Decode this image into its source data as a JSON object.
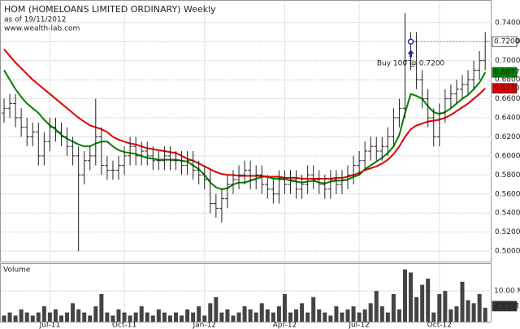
{
  "chart_data": {
    "type": "ohlc",
    "title": "HOM (HOMELOANS LIMITED ORDINARY) Weekly",
    "subtitle": "as of 19/11/2012",
    "source": "www.wealth-lab.com",
    "categories": [
      null,
      null,
      null,
      null,
      null,
      null,
      null,
      null,
      "Jul-11",
      null,
      null,
      null,
      null,
      null,
      null,
      null,
      null,
      null,
      null,
      null,
      null,
      "Oct-11",
      null,
      null,
      null,
      null,
      null,
      null,
      null,
      null,
      null,
      null,
      null,
      null,
      null,
      "Jan-12",
      null,
      null,
      null,
      null,
      null,
      null,
      null,
      null,
      null,
      null,
      null,
      null,
      null,
      "Apr-12",
      null,
      null,
      null,
      null,
      null,
      null,
      null,
      null,
      null,
      null,
      null,
      null,
      "Jul-12",
      null,
      null,
      null,
      null,
      null,
      null,
      null,
      null,
      null,
      null,
      null,
      null,
      null,
      "Oct-12",
      null,
      null,
      null,
      null,
      null,
      null,
      null,
      null
    ],
    "ohlc": {
      "color": "#222222",
      "open": [
        0.645,
        0.65,
        0.655,
        0.64,
        0.63,
        0.62,
        0.625,
        0.6,
        0.615,
        0.63,
        0.625,
        0.62,
        0.61,
        0.6,
        0.58,
        0.595,
        0.6,
        0.62,
        0.59,
        0.585,
        0.585,
        0.59,
        0.6,
        0.61,
        0.6,
        0.605,
        0.6,
        0.595,
        0.595,
        0.6,
        0.595,
        0.595,
        0.59,
        0.595,
        0.585,
        0.58,
        0.575,
        0.55,
        0.545,
        0.555,
        0.57,
        0.575,
        0.58,
        0.585,
        0.575,
        0.58,
        0.57,
        0.565,
        0.56,
        0.575,
        0.57,
        0.575,
        0.565,
        0.57,
        0.58,
        0.575,
        0.57,
        0.565,
        0.575,
        0.57,
        0.575,
        0.58,
        0.59,
        0.595,
        0.605,
        0.61,
        0.605,
        0.61,
        0.62,
        0.64,
        0.65,
        0.7,
        0.72,
        0.68,
        0.66,
        0.64,
        0.62,
        0.645,
        0.66,
        0.665,
        0.67,
        0.675,
        0.68,
        0.69,
        0.7
      ],
      "high": [
        0.66,
        0.665,
        0.665,
        0.65,
        0.64,
        0.635,
        0.635,
        0.625,
        0.64,
        0.64,
        0.635,
        0.63,
        0.62,
        0.61,
        0.605,
        0.61,
        0.66,
        0.63,
        0.6,
        0.595,
        0.6,
        0.61,
        0.62,
        0.62,
        0.615,
        0.615,
        0.61,
        0.605,
        0.61,
        0.61,
        0.605,
        0.605,
        0.605,
        0.605,
        0.595,
        0.59,
        0.585,
        0.56,
        0.565,
        0.58,
        0.585,
        0.59,
        0.595,
        0.595,
        0.59,
        0.59,
        0.58,
        0.575,
        0.585,
        0.585,
        0.585,
        0.585,
        0.58,
        0.59,
        0.59,
        0.585,
        0.58,
        0.585,
        0.585,
        0.585,
        0.59,
        0.6,
        0.605,
        0.615,
        0.62,
        0.62,
        0.62,
        0.63,
        0.65,
        0.66,
        0.75,
        0.73,
        0.73,
        0.69,
        0.67,
        0.65,
        0.655,
        0.67,
        0.675,
        0.68,
        0.685,
        0.69,
        0.7,
        0.71,
        0.73
      ],
      "low": [
        0.635,
        0.64,
        0.63,
        0.62,
        0.61,
        0.61,
        0.59,
        0.59,
        0.605,
        0.615,
        0.61,
        0.6,
        0.59,
        0.5,
        0.57,
        0.585,
        0.59,
        0.58,
        0.575,
        0.575,
        0.575,
        0.58,
        0.59,
        0.59,
        0.59,
        0.59,
        0.585,
        0.585,
        0.585,
        0.585,
        0.585,
        0.58,
        0.58,
        0.575,
        0.57,
        0.565,
        0.54,
        0.535,
        0.53,
        0.545,
        0.56,
        0.565,
        0.57,
        0.565,
        0.565,
        0.56,
        0.555,
        0.55,
        0.55,
        0.56,
        0.56,
        0.555,
        0.555,
        0.56,
        0.565,
        0.56,
        0.555,
        0.555,
        0.56,
        0.56,
        0.565,
        0.57,
        0.58,
        0.585,
        0.595,
        0.595,
        0.595,
        0.6,
        0.61,
        0.63,
        0.64,
        0.69,
        0.67,
        0.65,
        0.63,
        0.61,
        0.61,
        0.635,
        0.65,
        0.655,
        0.66,
        0.665,
        0.67,
        0.68,
        0.69
      ],
      "close": [
        0.65,
        0.655,
        0.64,
        0.63,
        0.62,
        0.625,
        0.6,
        0.615,
        0.63,
        0.625,
        0.62,
        0.61,
        0.6,
        0.58,
        0.595,
        0.6,
        0.62,
        0.59,
        0.585,
        0.585,
        0.59,
        0.6,
        0.61,
        0.6,
        0.605,
        0.6,
        0.595,
        0.595,
        0.6,
        0.595,
        0.595,
        0.59,
        0.595,
        0.585,
        0.58,
        0.575,
        0.55,
        0.545,
        0.555,
        0.57,
        0.575,
        0.58,
        0.585,
        0.575,
        0.58,
        0.57,
        0.565,
        0.56,
        0.575,
        0.57,
        0.575,
        0.565,
        0.57,
        0.58,
        0.575,
        0.57,
        0.565,
        0.575,
        0.57,
        0.575,
        0.58,
        0.59,
        0.595,
        0.605,
        0.61,
        0.605,
        0.61,
        0.62,
        0.64,
        0.65,
        0.7,
        0.72,
        0.68,
        0.66,
        0.64,
        0.62,
        0.645,
        0.66,
        0.665,
        0.67,
        0.675,
        0.68,
        0.69,
        0.7,
        0.72
      ],
      "last_label": "0.7200"
    },
    "series": [
      {
        "color": "#008000",
        "last_label": "0.6877",
        "values": [
          0.69,
          0.68,
          0.67,
          0.662,
          0.655,
          0.65,
          0.645,
          0.638,
          0.632,
          0.628,
          0.622,
          0.618,
          0.615,
          0.612,
          0.61,
          0.61,
          0.613,
          0.615,
          0.615,
          0.61,
          0.606,
          0.604,
          0.603,
          0.602,
          0.6,
          0.598,
          0.597,
          0.596,
          0.596,
          0.596,
          0.596,
          0.595,
          0.594,
          0.59,
          0.586,
          0.58,
          0.572,
          0.567,
          0.565,
          0.566,
          0.57,
          0.572,
          0.572,
          0.574,
          0.576,
          0.578,
          0.578,
          0.576,
          0.576,
          0.576,
          0.574,
          0.573,
          0.572,
          0.573,
          0.574,
          0.572,
          0.571,
          0.573,
          0.574,
          0.574,
          0.575,
          0.578,
          0.58,
          0.586,
          0.59,
          0.594,
          0.598,
          0.603,
          0.61,
          0.622,
          0.645,
          0.665,
          0.663,
          0.66,
          0.652,
          0.646,
          0.644,
          0.646,
          0.65,
          0.655,
          0.66,
          0.664,
          0.67,
          0.677,
          0.6877
        ]
      },
      {
        "color": "#e00000",
        "last_label": "0.6710",
        "values": [
          0.712,
          0.705,
          0.698,
          0.692,
          0.686,
          0.68,
          0.675,
          0.67,
          0.665,
          0.66,
          0.655,
          0.65,
          0.645,
          0.64,
          0.636,
          0.632,
          0.63,
          0.628,
          0.625,
          0.62,
          0.617,
          0.615,
          0.613,
          0.612,
          0.61,
          0.608,
          0.607,
          0.606,
          0.605,
          0.604,
          0.603,
          0.6,
          0.597,
          0.595,
          0.592,
          0.589,
          0.586,
          0.583,
          0.581,
          0.58,
          0.58,
          0.579,
          0.579,
          0.579,
          0.579,
          0.579,
          0.578,
          0.578,
          0.578,
          0.577,
          0.577,
          0.577,
          0.576,
          0.576,
          0.576,
          0.576,
          0.576,
          0.576,
          0.577,
          0.577,
          0.578,
          0.58,
          0.582,
          0.585,
          0.587,
          0.589,
          0.592,
          0.596,
          0.602,
          0.61,
          0.62,
          0.628,
          0.632,
          0.634,
          0.636,
          0.637,
          0.638,
          0.64,
          0.643,
          0.647,
          0.651,
          0.655,
          0.66,
          0.665,
          0.671
        ]
      }
    ],
    "ylim": [
      0.489,
      0.762
    ],
    "yticks": [
      {
        "value": 0.5,
        "label": "0.5000"
      },
      {
        "value": 0.52,
        "label": "0.5200"
      },
      {
        "value": 0.54,
        "label": "0.5400"
      },
      {
        "value": 0.56,
        "label": "0.5600"
      },
      {
        "value": 0.58,
        "label": "0.5800"
      },
      {
        "value": 0.6,
        "label": "0.6000"
      },
      {
        "value": 0.62,
        "label": "0.6200"
      },
      {
        "value": 0.64,
        "label": "0.6400"
      },
      {
        "value": 0.66,
        "label": "0.6600"
      },
      {
        "value": 0.68,
        "label": "0.6800"
      },
      {
        "value": 0.7,
        "label": "0.7000"
      },
      {
        "value": 0.72,
        "label": "0.7200"
      },
      {
        "value": 0.74,
        "label": "0.7400"
      }
    ],
    "trade": {
      "label": "Buy 100 @ 0.7200",
      "index": 71,
      "price": 0.72,
      "color": "#1a2a9a"
    },
    "volume": {
      "label": "Volume",
      "color": "#444444",
      "last_label": "4.53 M",
      "values": [
        2,
        3,
        2,
        4,
        3,
        2,
        3,
        5,
        3,
        4,
        2,
        3,
        6,
        4,
        3,
        2,
        5,
        9,
        3,
        2,
        4,
        3,
        2,
        3,
        5,
        3,
        2,
        4,
        3,
        2,
        3,
        2,
        4,
        3,
        5,
        2,
        6,
        8,
        3,
        4,
        2,
        3,
        5,
        4,
        3,
        6,
        4,
        3,
        5,
        9,
        3,
        4,
        6,
        3,
        8,
        4,
        3,
        2,
        5,
        3,
        4,
        5,
        3,
        4,
        6,
        10,
        5,
        3,
        9,
        4,
        17,
        16,
        8,
        12,
        14,
        3,
        9,
        10,
        4,
        5,
        13,
        7,
        6,
        9,
        4.53
      ],
      "ylim": [
        0,
        18.5
      ],
      "yticks": [
        {
          "value": 10,
          "label": "10.00 M"
        }
      ]
    },
    "grid": true
  }
}
